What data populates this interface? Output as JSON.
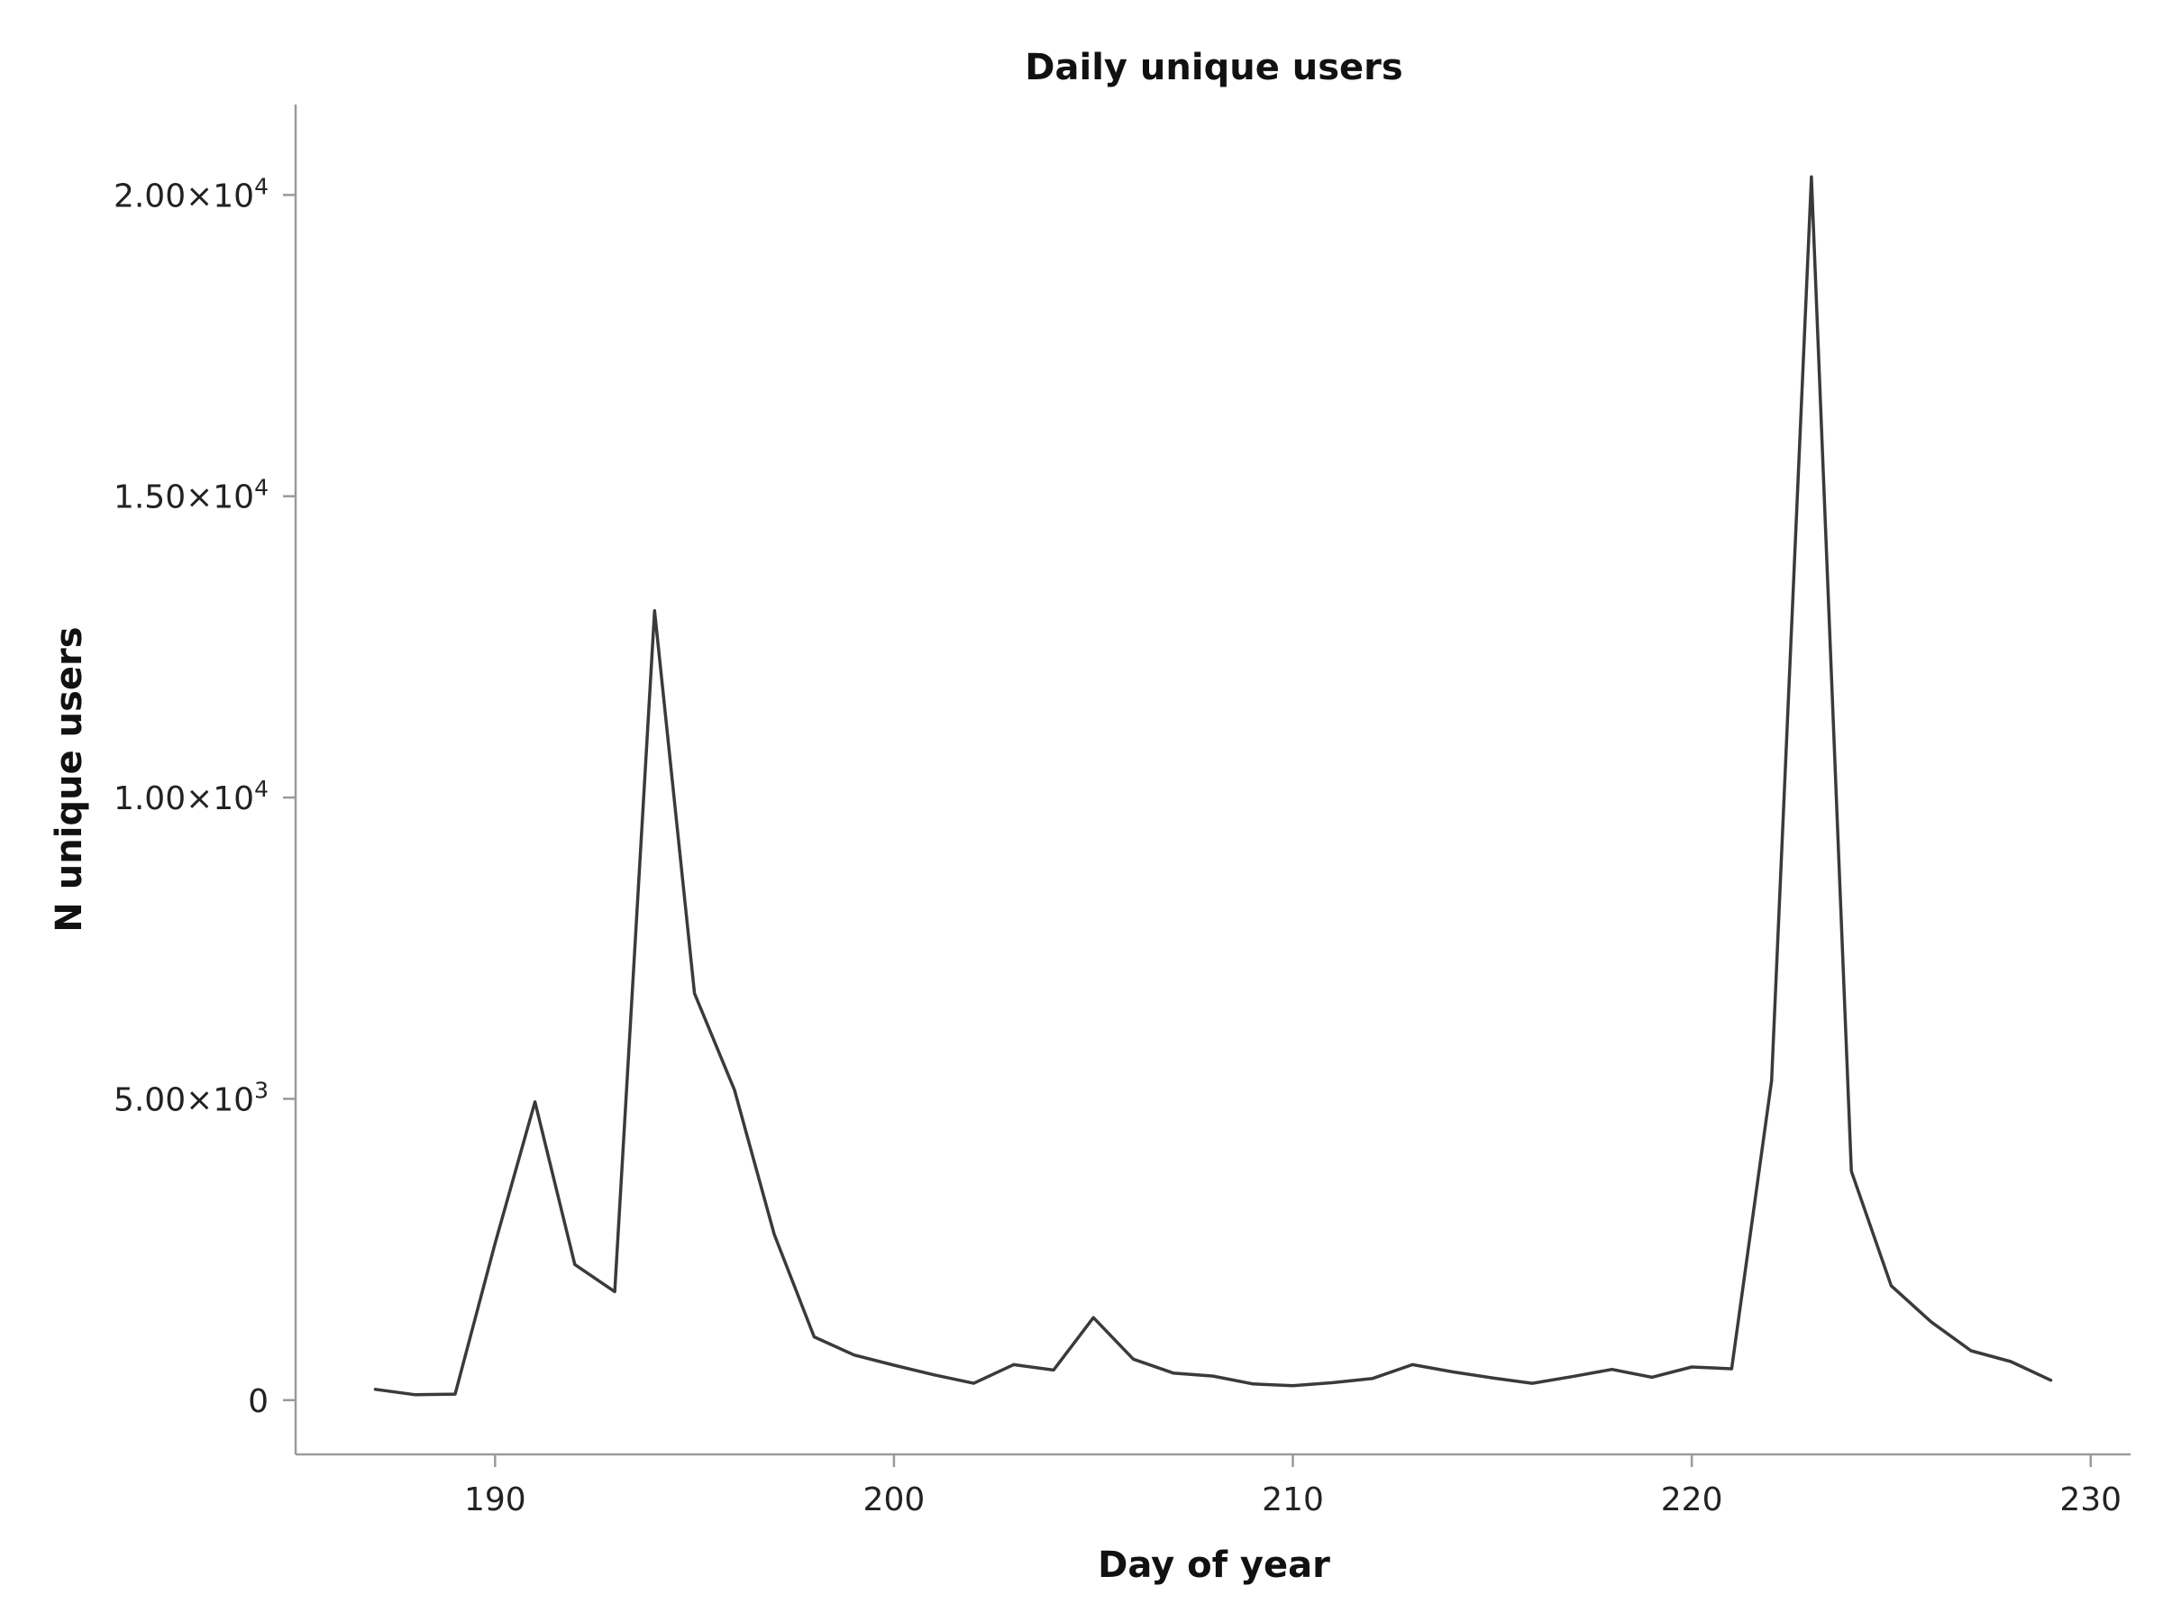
{
  "chart_data": {
    "type": "line",
    "title": "Daily unique users",
    "xlabel": "Day of year",
    "ylabel": "N unique users",
    "xlim": [
      185,
      231
    ],
    "ylim": [
      -900,
      21500
    ],
    "x_ticks": [
      {
        "value": 190,
        "label": "190"
      },
      {
        "value": 200,
        "label": "200"
      },
      {
        "value": 210,
        "label": "210"
      },
      {
        "value": 220,
        "label": "220"
      },
      {
        "value": 230,
        "label": "230"
      }
    ],
    "y_ticks": [
      {
        "value": 0,
        "label": "0",
        "exp": ""
      },
      {
        "value": 5000,
        "label": "5.00×10",
        "exp": "3"
      },
      {
        "value": 10000,
        "label": "1.00×10",
        "exp": "4"
      },
      {
        "value": 15000,
        "label": "1.50×10",
        "exp": "4"
      },
      {
        "value": 20000,
        "label": "2.00×10",
        "exp": "4"
      }
    ],
    "grid": false,
    "line_color": "#3a3a3a",
    "series": [
      {
        "x": [
          187,
          188,
          189,
          190,
          191,
          192,
          193,
          194,
          195,
          196,
          197,
          198,
          199,
          200,
          201,
          202,
          203,
          204,
          205,
          206,
          207,
          208,
          209,
          210,
          211,
          212,
          213,
          214,
          215,
          216,
          217,
          218,
          219,
          220,
          221,
          222,
          223,
          224,
          225,
          226,
          227,
          228,
          229
        ],
        "values": [
          180,
          90,
          100,
          2600,
          4950,
          2250,
          1800,
          13100,
          6750,
          5150,
          2750,
          1050,
          750,
          580,
          420,
          280,
          590,
          500,
          1370,
          680,
          450,
          400,
          270,
          240,
          290,
          360,
          590,
          470,
          370,
          280,
          390,
          510,
          380,
          550,
          520,
          5300,
          20300,
          3800,
          1900,
          1300,
          820,
          640,
          330
        ]
      }
    ]
  }
}
